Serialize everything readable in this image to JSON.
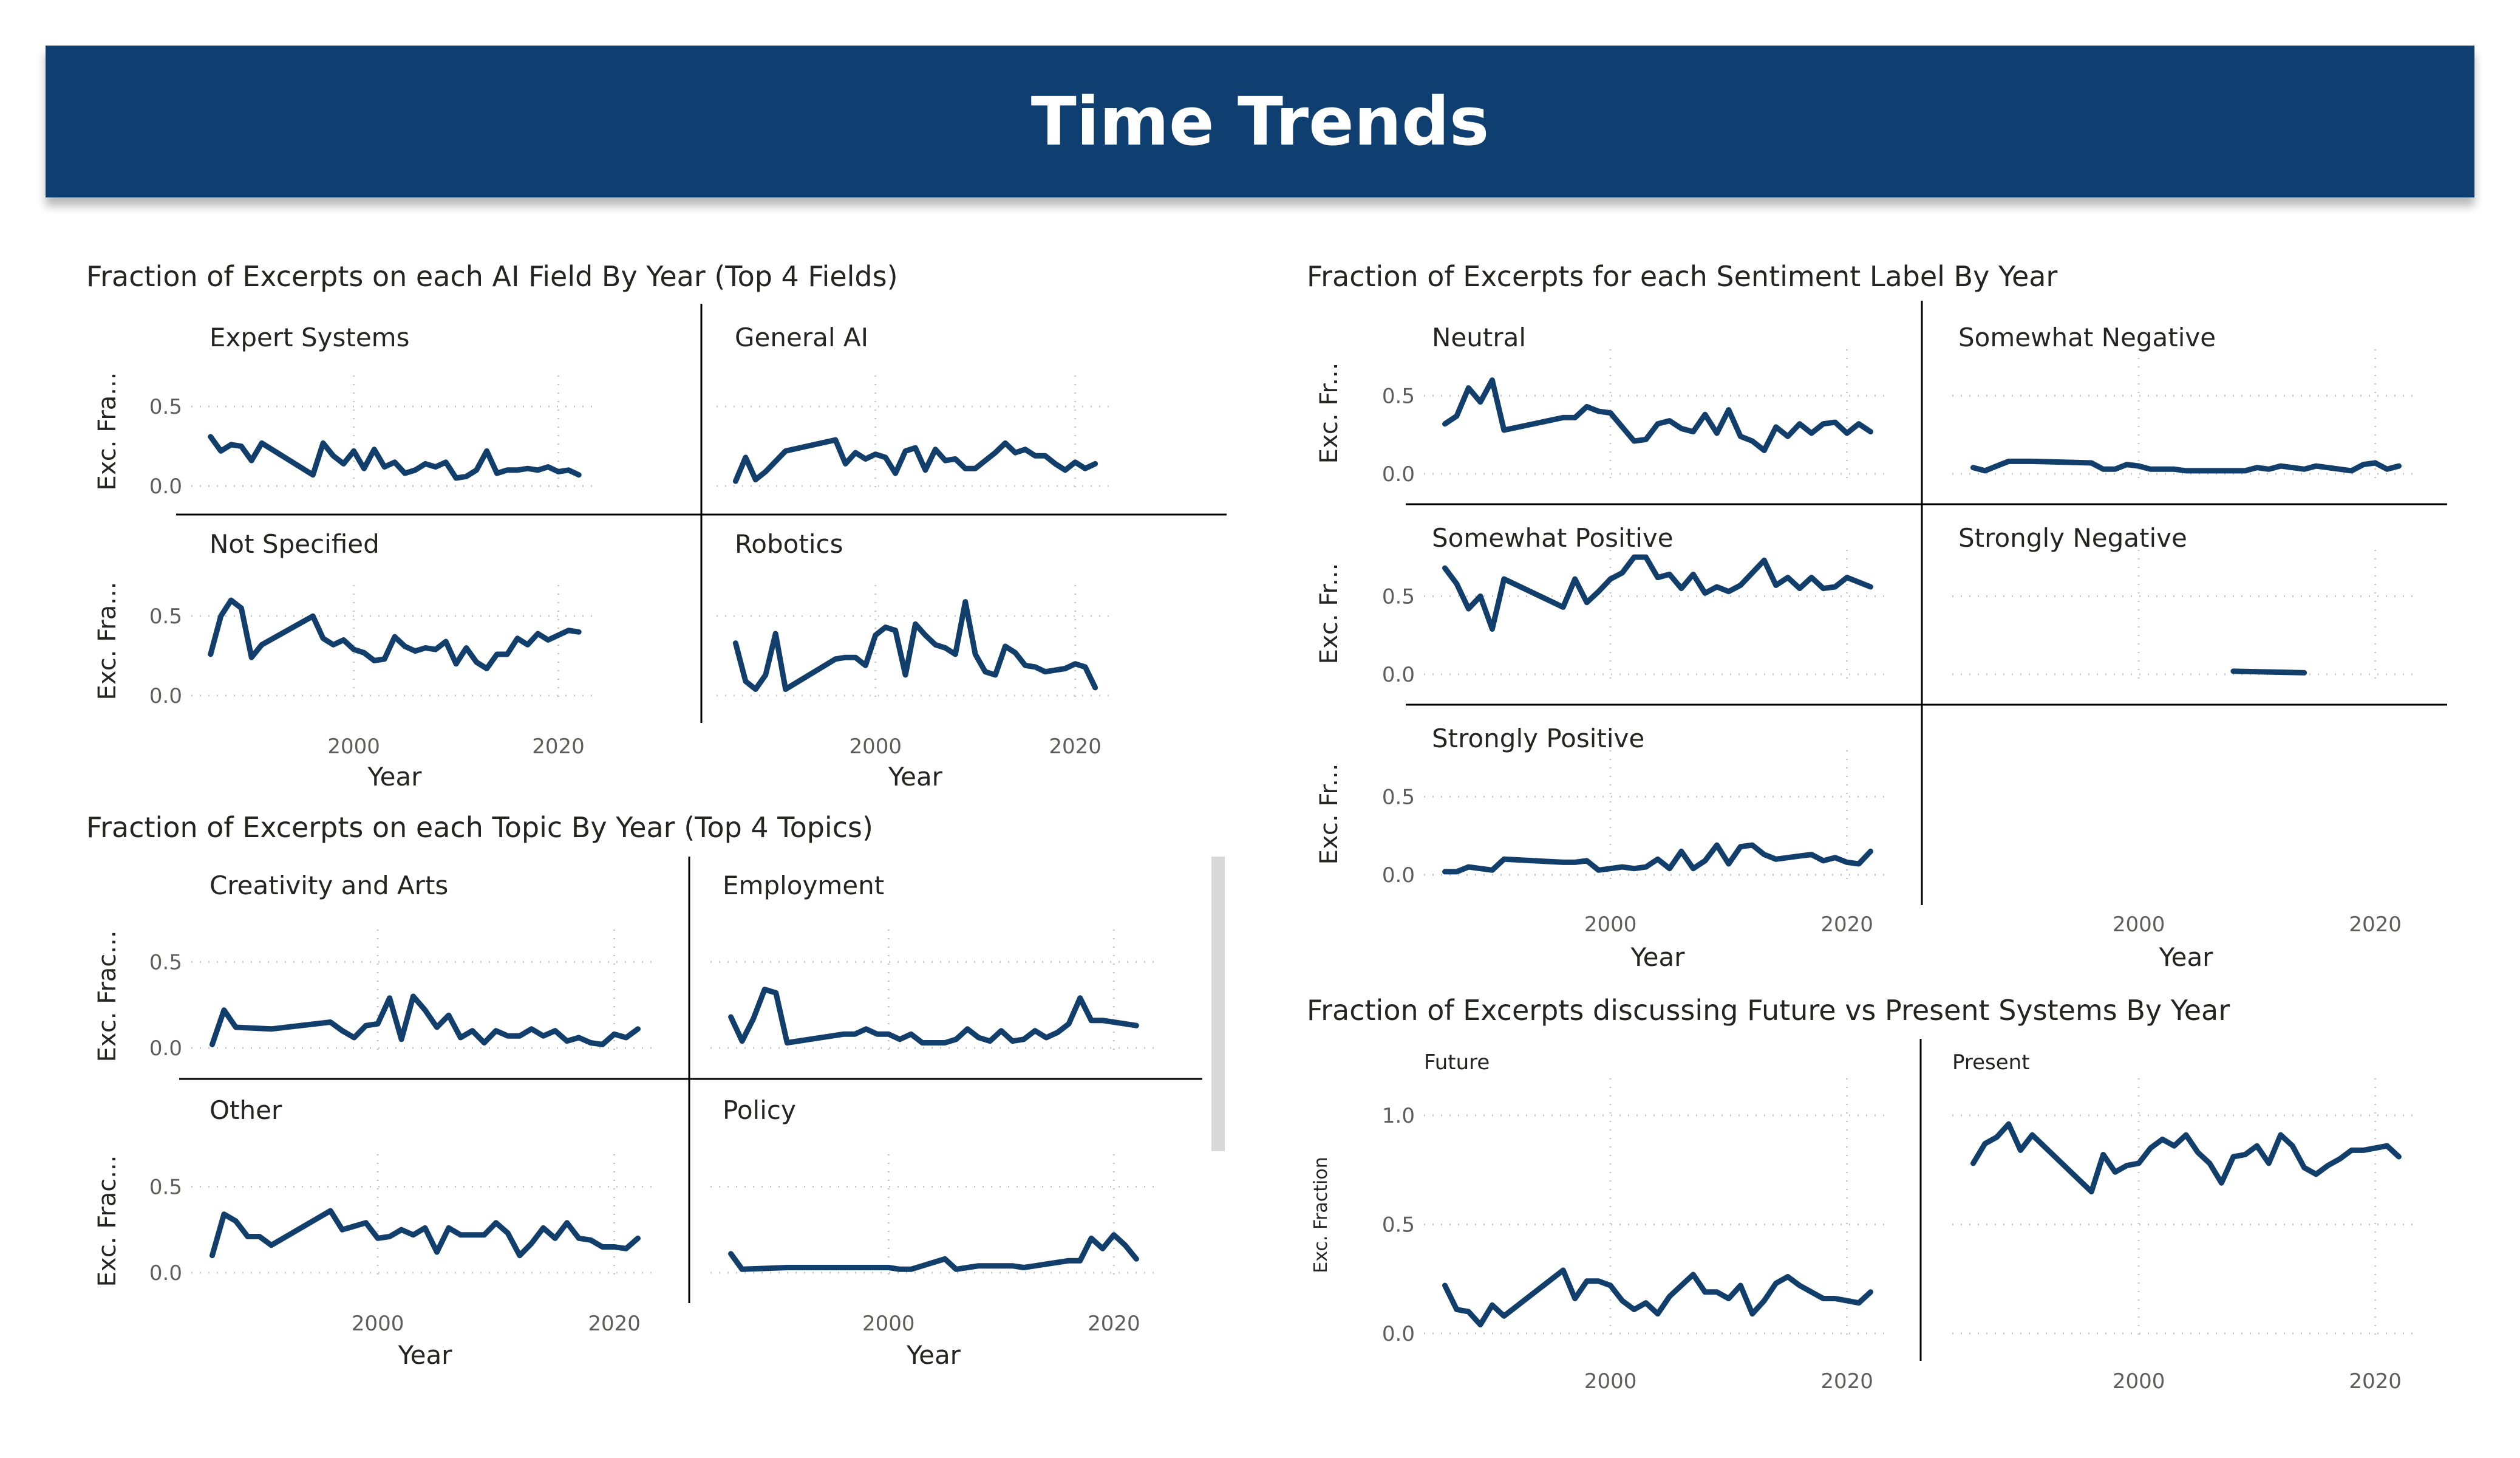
{
  "header": {
    "title": "Time Trends",
    "background": "#0f3e70"
  },
  "colors": {
    "line": "#123e6b",
    "grid": "#c8c8c8",
    "divider": "#000000",
    "tick": "#605e5c"
  },
  "chart_data": [
    {
      "id": "fields",
      "type": "line",
      "title": "Fraction of Excerpts on each AI Field By Year (Top 4 Fields)",
      "xlabel": "Year",
      "ylabel": "Exc. Fra...",
      "xlim": [
        1985,
        2023
      ],
      "ylim": [
        0,
        0.6
      ],
      "xticks": [
        2000,
        2020
      ],
      "yticks": [
        0.5,
        0.0
      ],
      "panels": [
        {
          "name": "Expert Systems",
          "x": [
            1986,
            1987,
            1988,
            1989,
            1990,
            1991,
            1996,
            1997,
            1998,
            1999,
            2000,
            2001,
            2002,
            2003,
            2004,
            2005,
            2006,
            2007,
            2008,
            2009,
            2010,
            2011,
            2012,
            2013,
            2014,
            2015,
            2016,
            2017,
            2018,
            2019,
            2020,
            2021,
            2022
          ],
          "y": [
            0.31,
            0.22,
            0.26,
            0.25,
            0.16,
            0.27,
            0.07,
            0.27,
            0.19,
            0.14,
            0.22,
            0.11,
            0.23,
            0.12,
            0.15,
            0.08,
            0.1,
            0.14,
            0.12,
            0.15,
            0.05,
            0.06,
            0.1,
            0.22,
            0.08,
            0.1,
            0.1,
            0.11,
            0.1,
            0.12,
            0.09,
            0.1,
            0.07
          ]
        },
        {
          "name": "General AI",
          "x": [
            1986,
            1987,
            1988,
            1989,
            1991,
            1996,
            1997,
            1998,
            1999,
            2000,
            2001,
            2002,
            2003,
            2004,
            2005,
            2006,
            2007,
            2008,
            2009,
            2010,
            2011,
            2012,
            2013,
            2014,
            2015,
            2016,
            2017,
            2018,
            2019,
            2020,
            2021,
            2022
          ],
          "y": [
            0.03,
            0.18,
            0.04,
            0.09,
            0.22,
            0.29,
            0.14,
            0.21,
            0.17,
            0.2,
            0.18,
            0.08,
            0.22,
            0.24,
            0.1,
            0.23,
            0.16,
            0.17,
            0.11,
            0.11,
            0.16,
            0.21,
            0.27,
            0.21,
            0.23,
            0.19,
            0.19,
            0.14,
            0.1,
            0.15,
            0.11,
            0.14
          ]
        },
        {
          "name": "Not Specified",
          "x": [
            1986,
            1987,
            1988,
            1989,
            1990,
            1991,
            1996,
            1997,
            1998,
            1999,
            2000,
            2001,
            2002,
            2003,
            2004,
            2005,
            2006,
            2007,
            2008,
            2009,
            2010,
            2011,
            2012,
            2013,
            2014,
            2015,
            2016,
            2017,
            2018,
            2019,
            2020,
            2021,
            2022
          ],
          "y": [
            0.26,
            0.5,
            0.6,
            0.55,
            0.24,
            0.32,
            0.5,
            0.36,
            0.32,
            0.35,
            0.29,
            0.27,
            0.22,
            0.23,
            0.37,
            0.31,
            0.28,
            0.3,
            0.29,
            0.34,
            0.2,
            0.3,
            0.21,
            0.17,
            0.26,
            0.26,
            0.36,
            0.32,
            0.39,
            0.35,
            0.38,
            0.41,
            0.4
          ]
        },
        {
          "name": "Robotics",
          "x": [
            1986,
            1987,
            1988,
            1989,
            1990,
            1991,
            1996,
            1997,
            1998,
            1999,
            2000,
            2001,
            2002,
            2003,
            2004,
            2005,
            2006,
            2007,
            2008,
            2009,
            2010,
            2011,
            2012,
            2013,
            2014,
            2015,
            2016,
            2017,
            2018,
            2019,
            2020,
            2021,
            2022
          ],
          "y": [
            0.33,
            0.09,
            0.04,
            0.13,
            0.39,
            0.04,
            0.23,
            0.24,
            0.24,
            0.19,
            0.38,
            0.43,
            0.41,
            0.13,
            0.45,
            0.38,
            0.32,
            0.3,
            0.26,
            0.59,
            0.26,
            0.15,
            0.13,
            0.31,
            0.27,
            0.19,
            0.18,
            0.15,
            0.16,
            0.17,
            0.2,
            0.18,
            0.05
          ]
        }
      ]
    },
    {
      "id": "topics",
      "type": "line",
      "title": "Fraction of Excerpts on each Topic By Year (Top 4 Topics)",
      "xlabel": "Year",
      "ylabel": "Exc. Frac...",
      "xlim": [
        1985,
        2023
      ],
      "ylim": [
        0,
        0.6
      ],
      "xticks": [
        2000,
        2020
      ],
      "yticks": [
        0.5,
        0.0
      ],
      "panels": [
        {
          "name": "Creativity and Arts",
          "x": [
            1986,
            1987,
            1988,
            1991,
            1996,
            1997,
            1998,
            1999,
            2000,
            2001,
            2002,
            2003,
            2004,
            2005,
            2006,
            2007,
            2008,
            2009,
            2010,
            2011,
            2012,
            2013,
            2014,
            2015,
            2016,
            2017,
            2018,
            2019,
            2020,
            2021,
            2022
          ],
          "y": [
            0.02,
            0.22,
            0.12,
            0.11,
            0.15,
            0.1,
            0.06,
            0.13,
            0.14,
            0.29,
            0.05,
            0.3,
            0.22,
            0.12,
            0.19,
            0.06,
            0.1,
            0.03,
            0.1,
            0.07,
            0.07,
            0.11,
            0.07,
            0.1,
            0.04,
            0.06,
            0.03,
            0.02,
            0.08,
            0.06,
            0.11
          ]
        },
        {
          "name": "Employment",
          "x": [
            1986,
            1987,
            1988,
            1989,
            1990,
            1991,
            1996,
            1997,
            1998,
            1999,
            2000,
            2001,
            2002,
            2003,
            2004,
            2005,
            2006,
            2007,
            2008,
            2009,
            2010,
            2011,
            2012,
            2013,
            2014,
            2015,
            2016,
            2017,
            2018,
            2019,
            2020,
            2021,
            2022
          ],
          "y": [
            0.18,
            0.04,
            0.17,
            0.34,
            0.32,
            0.03,
            0.08,
            0.08,
            0.11,
            0.08,
            0.08,
            0.05,
            0.08,
            0.03,
            0.03,
            0.03,
            0.05,
            0.11,
            0.06,
            0.04,
            0.1,
            0.04,
            0.05,
            0.1,
            0.06,
            0.09,
            0.14,
            0.29,
            0.16,
            0.16,
            0.15,
            0.14,
            0.13
          ]
        },
        {
          "name": "Other",
          "x": [
            1986,
            1987,
            1988,
            1989,
            1990,
            1991,
            1996,
            1997,
            1998,
            1999,
            2000,
            2001,
            2002,
            2003,
            2004,
            2005,
            2006,
            2007,
            2008,
            2009,
            2010,
            2011,
            2012,
            2013,
            2014,
            2015,
            2016,
            2017,
            2018,
            2019,
            2020,
            2021,
            2022
          ],
          "y": [
            0.1,
            0.34,
            0.3,
            0.21,
            0.21,
            0.16,
            0.36,
            0.25,
            0.27,
            0.29,
            0.2,
            0.21,
            0.25,
            0.22,
            0.26,
            0.12,
            0.26,
            0.22,
            0.22,
            0.22,
            0.29,
            0.23,
            0.1,
            0.17,
            0.26,
            0.2,
            0.29,
            0.2,
            0.19,
            0.15,
            0.15,
            0.14,
            0.2
          ]
        },
        {
          "name": "Policy",
          "x": [
            1986,
            1987,
            1991,
            1996,
            1997,
            1998,
            1999,
            2000,
            2001,
            2002,
            2005,
            2006,
            2007,
            2008,
            2009,
            2010,
            2011,
            2012,
            2013,
            2014,
            2015,
            2016,
            2017,
            2018,
            2019,
            2020,
            2021,
            2022
          ],
          "y": [
            0.11,
            0.02,
            0.03,
            0.03,
            0.03,
            0.03,
            0.03,
            0.03,
            0.02,
            0.02,
            0.08,
            0.02,
            0.03,
            0.04,
            0.04,
            0.04,
            0.04,
            0.03,
            0.04,
            0.05,
            0.06,
            0.07,
            0.07,
            0.2,
            0.14,
            0.22,
            0.16,
            0.08
          ]
        }
      ]
    },
    {
      "id": "sentiment",
      "type": "line",
      "title": "Fraction of Excerpts for each Sentiment Label By Year",
      "xlabel": "Year",
      "ylabel": "Exc. Fr...",
      "xlim": [
        1985,
        2023
      ],
      "ylim": [
        0,
        0.7
      ],
      "xticks": [
        2000,
        2020
      ],
      "yticks": [
        0.5,
        0.0
      ],
      "panels": [
        {
          "name": "Neutral",
          "x": [
            1986,
            1987,
            1988,
            1989,
            1990,
            1991,
            1996,
            1997,
            1998,
            1999,
            2000,
            2001,
            2002,
            2003,
            2004,
            2005,
            2006,
            2007,
            2008,
            2009,
            2010,
            2011,
            2012,
            2013,
            2014,
            2015,
            2016,
            2017,
            2018,
            2019,
            2020,
            2021,
            2022
          ],
          "y": [
            0.32,
            0.37,
            0.55,
            0.46,
            0.6,
            0.28,
            0.36,
            0.36,
            0.43,
            0.4,
            0.39,
            0.3,
            0.21,
            0.22,
            0.32,
            0.34,
            0.29,
            0.27,
            0.38,
            0.26,
            0.41,
            0.24,
            0.21,
            0.15,
            0.3,
            0.24,
            0.32,
            0.26,
            0.32,
            0.33,
            0.26,
            0.32,
            0.27
          ]
        },
        {
          "name": "Somewhat Negative",
          "x": [
            1986,
            1987,
            1988,
            1989,
            1990,
            1991,
            1996,
            1997,
            1998,
            1999,
            2000,
            2001,
            2002,
            2003,
            2004,
            2005,
            2006,
            2007,
            2008,
            2009,
            2010,
            2011,
            2012,
            2013,
            2014,
            2015,
            2016,
            2017,
            2018,
            2019,
            2020,
            2021,
            2022
          ],
          "y": [
            0.04,
            0.02,
            0.05,
            0.08,
            0.08,
            0.08,
            0.07,
            0.03,
            0.03,
            0.06,
            0.05,
            0.03,
            0.03,
            0.03,
            0.02,
            0.02,
            0.02,
            0.02,
            0.02,
            0.02,
            0.04,
            0.03,
            0.05,
            0.04,
            0.03,
            0.05,
            0.04,
            0.03,
            0.02,
            0.06,
            0.07,
            0.03,
            0.05
          ]
        },
        {
          "name": "Somewhat Positive",
          "x": [
            1986,
            1987,
            1988,
            1989,
            1990,
            1991,
            1996,
            1997,
            1998,
            1999,
            2000,
            2001,
            2002,
            2003,
            2004,
            2005,
            2006,
            2007,
            2008,
            2009,
            2010,
            2011,
            2012,
            2013,
            2014,
            2015,
            2016,
            2017,
            2018,
            2019,
            2020,
            2021,
            2022
          ],
          "y": [
            0.68,
            0.58,
            0.42,
            0.5,
            0.29,
            0.61,
            0.43,
            0.61,
            0.46,
            0.53,
            0.61,
            0.65,
            0.75,
            0.75,
            0.62,
            0.64,
            0.55,
            0.64,
            0.52,
            0.56,
            0.53,
            0.57,
            0.65,
            0.73,
            0.57,
            0.62,
            0.55,
            0.62,
            0.55,
            0.56,
            0.62,
            0.59,
            0.56
          ]
        },
        {
          "name": "Strongly Negative",
          "x": [
            2008,
            2014
          ],
          "y": [
            0.02,
            0.01
          ]
        },
        {
          "name": "Strongly Positive",
          "x": [
            1986,
            1987,
            1988,
            1989,
            1990,
            1991,
            1996,
            1997,
            1998,
            1999,
            2000,
            2001,
            2002,
            2003,
            2004,
            2005,
            2006,
            2007,
            2008,
            2009,
            2010,
            2011,
            2012,
            2013,
            2014,
            2015,
            2016,
            2017,
            2018,
            2019,
            2020,
            2021,
            2022
          ],
          "y": [
            0.02,
            0.02,
            0.05,
            0.04,
            0.03,
            0.1,
            0.08,
            0.08,
            0.09,
            0.03,
            0.04,
            0.05,
            0.04,
            0.05,
            0.1,
            0.04,
            0.15,
            0.04,
            0.09,
            0.19,
            0.07,
            0.18,
            0.19,
            0.13,
            0.1,
            0.11,
            0.12,
            0.13,
            0.09,
            0.11,
            0.08,
            0.07,
            0.15
          ]
        }
      ]
    },
    {
      "id": "future",
      "type": "line",
      "title": "Fraction of Excerpts discussing Future vs Present Systems By Year",
      "xlabel": "",
      "ylabel": "Exc. Fraction",
      "xlim": [
        1985,
        2023
      ],
      "ylim": [
        0,
        1.1
      ],
      "xticks": [
        2000,
        2020
      ],
      "yticks": [
        1.0,
        0.5,
        0.0
      ],
      "panels": [
        {
          "name": "Future",
          "x": [
            1986,
            1987,
            1988,
            1989,
            1990,
            1991,
            1996,
            1997,
            1998,
            1999,
            2000,
            2001,
            2002,
            2003,
            2004,
            2005,
            2006,
            2007,
            2008,
            2009,
            2010,
            2011,
            2012,
            2013,
            2014,
            2015,
            2016,
            2017,
            2018,
            2019,
            2020,
            2021,
            2022
          ],
          "y": [
            0.22,
            0.11,
            0.1,
            0.04,
            0.13,
            0.08,
            0.29,
            0.16,
            0.24,
            0.24,
            0.22,
            0.15,
            0.11,
            0.14,
            0.09,
            0.17,
            0.22,
            0.27,
            0.19,
            0.19,
            0.16,
            0.22,
            0.09,
            0.15,
            0.23,
            0.26,
            0.22,
            0.19,
            0.16,
            0.16,
            0.15,
            0.14,
            0.19
          ]
        },
        {
          "name": "Present",
          "x": [
            1986,
            1987,
            1988,
            1989,
            1990,
            1991,
            1996,
            1997,
            1998,
            1999,
            2000,
            2001,
            2002,
            2003,
            2004,
            2005,
            2006,
            2007,
            2008,
            2009,
            2010,
            2011,
            2012,
            2013,
            2014,
            2015,
            2016,
            2017,
            2018,
            2019,
            2020,
            2021,
            2022
          ],
          "y": [
            0.78,
            0.87,
            0.9,
            0.96,
            0.84,
            0.91,
            0.65,
            0.82,
            0.74,
            0.77,
            0.78,
            0.85,
            0.89,
            0.86,
            0.91,
            0.83,
            0.78,
            0.69,
            0.81,
            0.82,
            0.86,
            0.78,
            0.91,
            0.86,
            0.76,
            0.73,
            0.77,
            0.8,
            0.84,
            0.84,
            0.85,
            0.86,
            0.81
          ]
        }
      ]
    }
  ]
}
